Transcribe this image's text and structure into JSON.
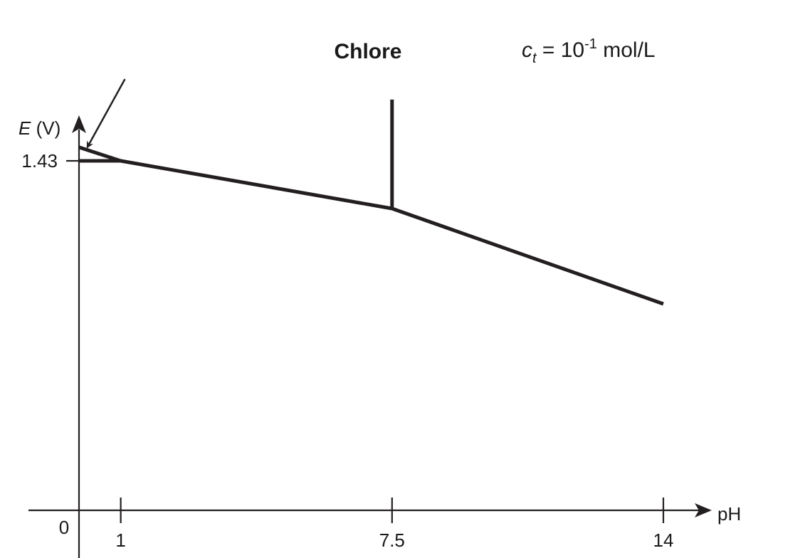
{
  "chart_data": {
    "type": "line",
    "title": "Chlore",
    "concentration": {
      "var": "c",
      "sub": "t",
      "eq": " = 10",
      "exp": "-1",
      "unit": " mol/L"
    },
    "xlabel": "pH",
    "ylabel": {
      "symbol": "E",
      "unit": " (V)"
    },
    "origin_label": "0",
    "x_ticks": [
      "1",
      "7.5",
      "14"
    ],
    "y_ticks": [
      "1.43"
    ],
    "xlim": [
      -1.2,
      15
    ],
    "ylim": [
      0.97,
      1.55
    ],
    "segments": [
      {
        "name": "horizontal-1.43",
        "points": [
          [
            0,
            1.43
          ],
          [
            1,
            1.43
          ]
        ]
      },
      {
        "name": "upper-short",
        "points": [
          [
            0,
            1.45
          ],
          [
            1,
            1.43
          ]
        ]
      },
      {
        "name": "middle",
        "points": [
          [
            1,
            1.43
          ],
          [
            7.5,
            1.36
          ]
        ]
      },
      {
        "name": "vertical-7.5",
        "points": [
          [
            7.5,
            1.36
          ],
          [
            7.5,
            1.52
          ]
        ]
      },
      {
        "name": "right",
        "points": [
          [
            7.5,
            1.36
          ],
          [
            14,
            1.22
          ]
        ]
      }
    ],
    "annotation_arrow": {
      "from": [
        1.1,
        1.55
      ],
      "to": [
        0.2,
        1.45
      ]
    }
  }
}
